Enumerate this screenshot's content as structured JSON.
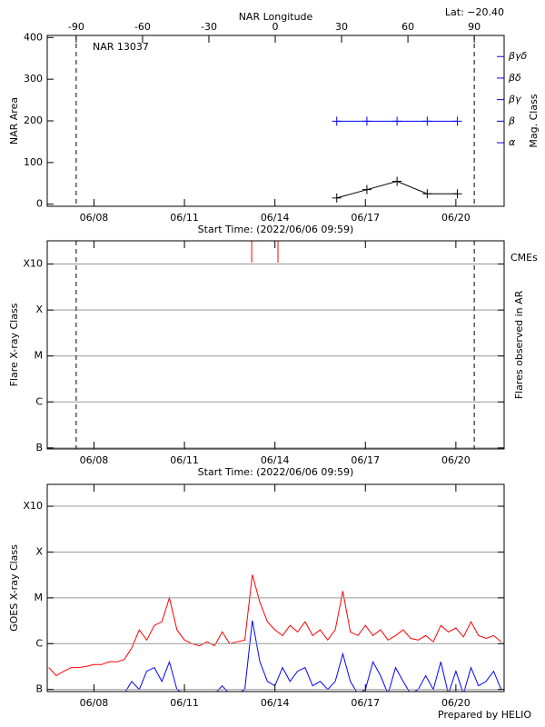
{
  "chart_data": [
    {
      "type": "line",
      "title": "NAR 13037",
      "lat_label": "Lat: −20.40",
      "x_label": "Start Time: (2022/06/06 09:59)",
      "y_label": "NAR Area",
      "y2_label": "Mag. Class",
      "x2_label": "NAR Longitude",
      "xlim": [
        0.45,
        15.6
      ],
      "xticks": [
        {
          "value": 2,
          "label": "06/08"
        },
        {
          "value": 5,
          "label": "06/11"
        },
        {
          "value": 8,
          "label": "06/14"
        },
        {
          "value": 11,
          "label": "06/17"
        },
        {
          "value": 14,
          "label": "06/20"
        }
      ],
      "ylim": [
        -5,
        405
      ],
      "yticks": [
        0,
        100,
        200,
        300,
        400
      ],
      "y2lim": [
        -1.95,
        5.98
      ],
      "y2ticks": [
        {
          "value": 1,
          "label": "α"
        },
        {
          "value": 2,
          "label": "β"
        },
        {
          "value": 3,
          "label": "βγ"
        },
        {
          "value": 4,
          "label": "βδ"
        },
        {
          "value": 5,
          "label": "βγδ"
        }
      ],
      "y2_color": "#0000ff",
      "x2lim": [
        -103.1,
        103.5
      ],
      "x2ticks": [
        -90,
        -60,
        -30,
        0,
        30,
        60,
        90
      ],
      "limb_longitudes": [
        -90,
        90
      ],
      "x": [
        10.05,
        11.05,
        12.05,
        13.05,
        14.05
      ],
      "series": [
        {
          "color": "#000000",
          "marker": "+",
          "values": [
            15,
            35,
            55,
            25,
            25
          ]
        },
        {
          "color": "#0000ff",
          "marker": "+",
          "axis": "y2",
          "values": [
            2,
            2,
            2,
            2,
            2
          ]
        }
      ]
    },
    {
      "type": "flares",
      "x_label": "Start Time: (2022/06/06 09:59)",
      "y_label": "Flare X-ray Class",
      "y2_label": "Flares observed in AR",
      "xlim": [
        0.45,
        15.6
      ],
      "xticks": [
        {
          "value": 2,
          "label": "06/08"
        },
        {
          "value": 5,
          "label": "06/11"
        },
        {
          "value": 8,
          "label": "06/14"
        },
        {
          "value": 11,
          "label": "06/17"
        },
        {
          "value": 14,
          "label": "06/20"
        }
      ],
      "log_y": true,
      "ylim": [
        9.5e-08,
        0.0032
      ],
      "yticks": [
        {
          "value": 1e-07,
          "label": "B"
        },
        {
          "value": 1e-06,
          "label": "C"
        },
        {
          "value": 1e-05,
          "label": "M"
        },
        {
          "value": 0.0001,
          "label": "X"
        },
        {
          "value": 0.001,
          "label": "X10"
        }
      ],
      "grid": true,
      "cme_label": "CMEs",
      "cme_color": "#ff0000",
      "cme_times": [
        7.23,
        8.1
      ]
    },
    {
      "type": "line",
      "y_label": "GOES X-ray Class",
      "xlim": [
        0.45,
        15.6
      ],
      "xticks": [
        {
          "value": 2,
          "label": "06/08"
        },
        {
          "value": 5,
          "label": "06/11"
        },
        {
          "value": 8,
          "label": "06/14"
        },
        {
          "value": 11,
          "label": "06/17"
        },
        {
          "value": 14,
          "label": "06/20"
        }
      ],
      "log_y": true,
      "ylim": [
        9e-08,
        0.003
      ],
      "yticks": [
        {
          "value": 1e-07,
          "label": "B"
        },
        {
          "value": 1e-06,
          "label": "C"
        },
        {
          "value": 1e-05,
          "label": "M"
        },
        {
          "value": 0.0001,
          "label": "X"
        },
        {
          "value": 0.001,
          "label": "X10"
        }
      ],
      "grid": true,
      "x": [
        0.5,
        0.75,
        1.0,
        1.25,
        1.5,
        1.75,
        2.0,
        2.25,
        2.5,
        2.75,
        3.0,
        3.25,
        3.5,
        3.75,
        4.0,
        4.25,
        4.5,
        4.75,
        5.0,
        5.25,
        5.5,
        5.75,
        6.0,
        6.25,
        6.5,
        6.75,
        7.0,
        7.25,
        7.5,
        7.75,
        8.0,
        8.25,
        8.5,
        8.75,
        9.0,
        9.25,
        9.5,
        9.75,
        10.0,
        10.25,
        10.5,
        10.75,
        11.0,
        11.25,
        11.5,
        11.75,
        12.0,
        12.25,
        12.5,
        12.75,
        13.0,
        13.25,
        13.5,
        13.75,
        14.0,
        14.25,
        14.5,
        14.75,
        15.0,
        15.25,
        15.5
      ],
      "series": [
        {
          "color": "#ff0000",
          "values": [
            3e-07,
            2e-07,
            2.5e-07,
            3e-07,
            3e-07,
            3.2e-07,
            3.5e-07,
            3.5e-07,
            4e-07,
            4e-07,
            4.5e-07,
            8e-07,
            2e-06,
            1.2e-06,
            2.5e-06,
            3e-06,
            1e-05,
            2e-06,
            1.2e-06,
            1e-06,
            9e-07,
            1.1e-06,
            9e-07,
            1.8e-06,
            1e-06,
            1.1e-06,
            1.2e-06,
            3.2e-05,
            8e-06,
            3e-06,
            2e-06,
            1.5e-06,
            2.5e-06,
            1.8e-06,
            3e-06,
            1.5e-06,
            2e-06,
            1.2e-06,
            2e-06,
            1.4e-05,
            1.8e-06,
            1.5e-06,
            2.5e-06,
            1.5e-06,
            2e-06,
            1.2e-06,
            1.5e-06,
            2e-06,
            1.3e-06,
            1.2e-06,
            1.5e-06,
            1.1e-06,
            2.5e-06,
            1.8e-06,
            2.2e-06,
            1.4e-06,
            3e-06,
            1.5e-06,
            1.3e-06,
            1.5e-06,
            1.1e-06
          ]
        },
        {
          "color": "#0000ff",
          "values": [
            8e-08,
            8e-08,
            8e-08,
            8e-08,
            8e-08,
            8e-08,
            8e-08,
            8e-08,
            8e-08,
            8e-08,
            8e-08,
            1.5e-07,
            1e-07,
            2.5e-07,
            3e-07,
            1.5e-07,
            4e-07,
            1e-07,
            8e-08,
            8e-08,
            8e-08,
            8e-08,
            8e-08,
            1.2e-07,
            8e-08,
            8e-08,
            1e-07,
            3.2e-06,
            4e-07,
            1.5e-07,
            1.2e-07,
            3e-07,
            1.5e-07,
            2.5e-07,
            3e-07,
            1.2e-07,
            1.5e-07,
            1e-07,
            1.5e-07,
            6e-07,
            1.5e-07,
            8e-08,
            1e-07,
            4e-07,
            2e-07,
            8e-08,
            3e-07,
            1.5e-07,
            8e-08,
            1e-07,
            2e-07,
            1e-07,
            4e-07,
            8e-08,
            2.5e-07,
            8e-08,
            3e-07,
            1.2e-07,
            1.5e-07,
            2.5e-07,
            1e-07
          ]
        }
      ]
    }
  ],
  "footer": "Prepared by HELIO"
}
